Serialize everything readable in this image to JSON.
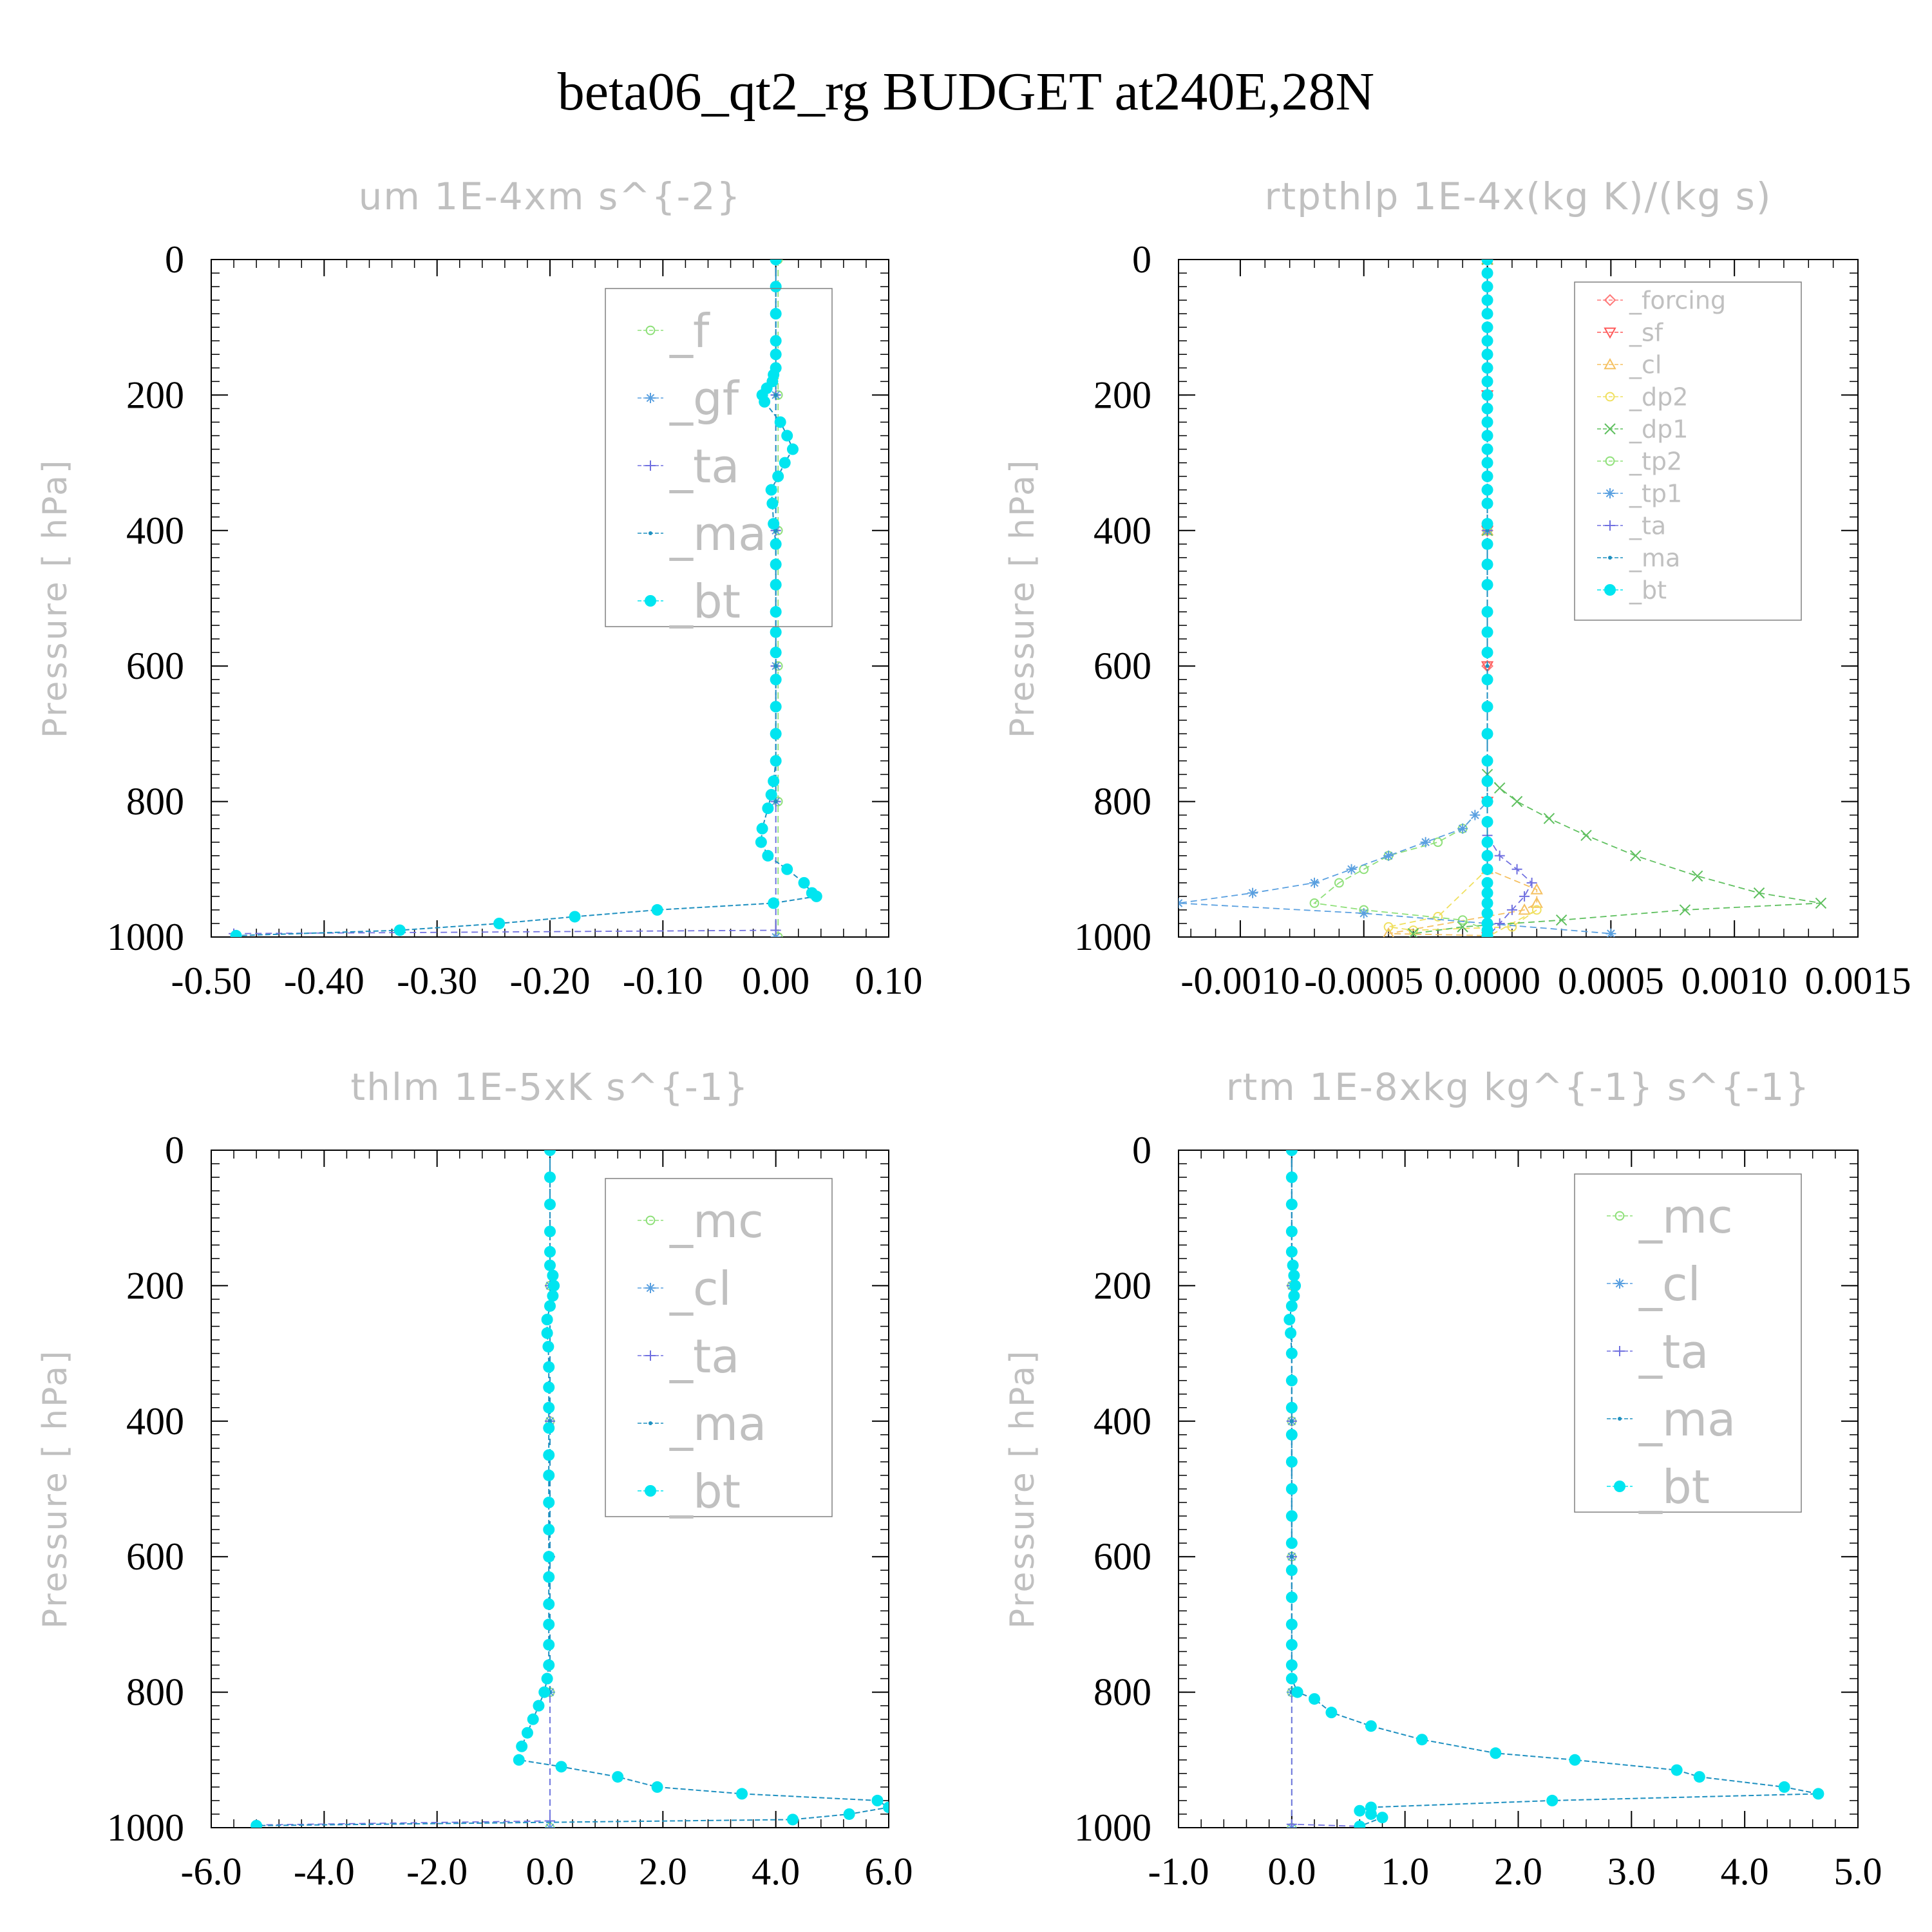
{
  "title": "beta06_qt2_rg  BUDGET at240E,28N",
  "colors": {
    "f": "#8fe07a",
    "gf": "#5aa0e0",
    "ta": "#7070e0",
    "ma": "#1e90c0",
    "bt": "#00e5f0",
    "forcing": "#ff7a7a",
    "sf": "#ff5a5a",
    "cl_warm": "#f5c060",
    "dp2": "#f0e060",
    "dp1": "#5fc05f",
    "tp2": "#8fe07a",
    "tp1": "#5aa0e0",
    "mc": "#8fe07a",
    "cl": "#5aa0e0",
    "axis": "#000000",
    "muted_text": "#c0c0c0"
  },
  "chart_data": [
    {
      "type": "line",
      "title": "um  1E-4xm s^{-2}",
      "ylabel": "Pressure [ hPa]",
      "xlim": [
        -0.5,
        0.1
      ],
      "ylim": [
        1000,
        0
      ],
      "xticks": [
        "-0.50",
        "-0.40",
        "-0.30",
        "-0.20",
        "-0.10",
        "0.00",
        "0.10"
      ],
      "yticks": [
        "0",
        "200",
        "400",
        "600",
        "800",
        "1000"
      ],
      "legend_placement": "top-right",
      "series": [
        {
          "name": "_f",
          "marker": "circle-open",
          "color_key": "f",
          "x": [
            0.002,
            0.002,
            0.002,
            0.002,
            0.002,
            0.002
          ],
          "y": [
            0,
            200,
            400,
            600,
            800,
            1000
          ]
        },
        {
          "name": "_gf",
          "marker": "asterisk",
          "color_key": "gf",
          "x": [
            0,
            0,
            0,
            0,
            0,
            0
          ],
          "y": [
            0,
            200,
            400,
            600,
            800,
            1000
          ]
        },
        {
          "name": "_ta",
          "marker": "plus",
          "color_key": "ta",
          "x": [
            0,
            0,
            0,
            0,
            0,
            0,
            -0.48
          ],
          "y": [
            0,
            200,
            400,
            600,
            800,
            990,
            995
          ]
        },
        {
          "name": "_ma",
          "marker": "dot",
          "color_key": "ma",
          "x": [
            0,
            0,
            0,
            0,
            0
          ],
          "y": [
            0,
            200,
            400,
            600,
            800
          ]
        },
        {
          "name": "_bt",
          "marker": "filled-circle",
          "color_key": "bt",
          "x": [
            0,
            0,
            0,
            0,
            0,
            0,
            -0.002,
            -0.003,
            -0.008,
            -0.012,
            -0.01,
            0.004,
            0.01,
            0.015,
            0.008,
            0.002,
            -0.004,
            -0.003,
            -0.002,
            0,
            0,
            0,
            0,
            0,
            0,
            0,
            0,
            0,
            0,
            -0.002,
            -0.004,
            -0.007,
            -0.012,
            -0.013,
            -0.007,
            0.01,
            0.025,
            0.032,
            0.036,
            -0.002,
            -0.105,
            -0.178,
            -0.245,
            -0.333,
            -0.478
          ],
          "y": [
            0,
            40,
            80,
            120,
            140,
            160,
            170,
            180,
            190,
            200,
            210,
            240,
            260,
            280,
            300,
            320,
            340,
            360,
            390,
            420,
            450,
            480,
            520,
            550,
            580,
            620,
            660,
            700,
            740,
            770,
            790,
            810,
            840,
            860,
            880,
            900,
            920,
            935,
            940,
            950,
            960,
            970,
            980,
            990,
            998
          ]
        }
      ]
    },
    {
      "type": "line",
      "title": "rtpthlp  1E-4x(kg K)/(kg s)",
      "ylabel": "Pressure [ hPa]",
      "xlim": [
        -0.00125,
        0.0015
      ],
      "ylim": [
        1000,
        0
      ],
      "xticks": [
        "-0.0010",
        "-0.0005",
        "0.0000",
        "0.0005",
        "0.0010",
        "0.0015"
      ],
      "yticks": [
        "0",
        "200",
        "400",
        "600",
        "800",
        "1000"
      ],
      "legend_placement": "top-right",
      "series": [
        {
          "name": "_forcing",
          "marker": "diamond",
          "color_key": "forcing",
          "x": [
            0,
            0,
            0,
            0,
            0,
            0
          ],
          "y": [
            0,
            200,
            400,
            600,
            800,
            1000
          ]
        },
        {
          "name": "_sf",
          "marker": "triangle-down",
          "color_key": "sf",
          "x": [
            0,
            0,
            0,
            0,
            0,
            0
          ],
          "y": [
            0,
            200,
            400,
            600,
            800,
            1000
          ]
        },
        {
          "name": "_cl",
          "marker": "triangle-up",
          "color_key": "cl_warm",
          "x": [
            0,
            0,
            0,
            0.0002,
            0.0002,
            0.00015,
            -0.0004,
            0
          ],
          "y": [
            0,
            400,
            900,
            930,
            950,
            960,
            995,
            998
          ]
        },
        {
          "name": "_dp2",
          "marker": "circle-open",
          "color_key": "dp2",
          "x": [
            0,
            0,
            0,
            -0.0002,
            -0.0004,
            -0.0003,
            0.0001,
            0.0002,
            0
          ],
          "y": [
            0,
            400,
            900,
            970,
            985,
            990,
            985,
            960,
            1000
          ]
        },
        {
          "name": "_dp1",
          "marker": "x",
          "color_key": "dp1",
          "x": [
            0,
            0,
            0,
            5e-05,
            0.00012,
            0.00025,
            0.0004,
            0.0006,
            0.00085,
            0.0011,
            0.00135,
            0.0008,
            0.0003,
            -0.0001,
            -0.0003
          ],
          "y": [
            0,
            400,
            760,
            780,
            800,
            825,
            850,
            880,
            910,
            935,
            950,
            960,
            975,
            985,
            995
          ]
        },
        {
          "name": "_tp2",
          "marker": "circle-open",
          "color_key": "tp2",
          "x": [
            0,
            0,
            0,
            -0.0001,
            -0.0002,
            -0.0004,
            -0.0005,
            -0.0006,
            -0.0007,
            -0.0005,
            -0.0001,
            0
          ],
          "y": [
            0,
            400,
            800,
            840,
            860,
            880,
            900,
            920,
            950,
            960,
            975,
            990
          ]
        },
        {
          "name": "_tp1",
          "marker": "asterisk",
          "color_key": "tp1",
          "x": [
            0,
            0,
            0,
            -5e-05,
            -0.0001,
            -0.00025,
            -0.0004,
            -0.00055,
            -0.0007,
            -0.00095,
            -0.00125,
            -0.0005,
            0,
            0.0005
          ],
          "y": [
            0,
            400,
            800,
            820,
            840,
            860,
            880,
            900,
            920,
            935,
            950,
            965,
            980,
            995
          ]
        },
        {
          "name": "_ta",
          "marker": "plus",
          "color_key": "ta",
          "x": [
            0,
            0,
            0,
            5e-05,
            0.00012,
            0.00018,
            0.00015,
            0.0001,
            5e-05,
            0
          ],
          "y": [
            0,
            400,
            850,
            880,
            900,
            920,
            940,
            960,
            980,
            1000
          ]
        },
        {
          "name": "_ma",
          "marker": "dot",
          "color_key": "ma",
          "x": [
            0,
            0,
            0,
            0,
            0,
            0
          ],
          "y": [
            0,
            200,
            400,
            600,
            800,
            1000
          ]
        },
        {
          "name": "_bt",
          "marker": "filled-circle",
          "color_key": "bt",
          "x": [
            0,
            0,
            0,
            0,
            0,
            0,
            0,
            0,
            0,
            0,
            0,
            0,
            0,
            0,
            0,
            0,
            0,
            0,
            0,
            0,
            0,
            0,
            0,
            0,
            0,
            0,
            0,
            0,
            0,
            0,
            0,
            0,
            0,
            0,
            0,
            0,
            0,
            0,
            0,
            0,
            0,
            0,
            0
          ],
          "y": [
            0,
            20,
            40,
            60,
            80,
            100,
            120,
            140,
            160,
            180,
            200,
            220,
            240,
            260,
            280,
            300,
            320,
            340,
            360,
            390,
            420,
            450,
            480,
            520,
            550,
            580,
            620,
            660,
            700,
            740,
            770,
            800,
            830,
            860,
            880,
            900,
            920,
            935,
            950,
            965,
            980,
            990,
            998
          ]
        }
      ]
    },
    {
      "type": "line",
      "title": "thlm  1E-5xK s^{-1}",
      "ylabel": "Pressure [ hPa]",
      "xlim": [
        -6.0,
        6.0
      ],
      "ylim": [
        1000,
        0
      ],
      "xticks": [
        "-6.0",
        "-4.0",
        "-2.0",
        "0.0",
        "2.0",
        "4.0",
        "6.0"
      ],
      "yticks": [
        "0",
        "200",
        "400",
        "600",
        "800",
        "1000"
      ],
      "legend_placement": "top-right",
      "series": [
        {
          "name": "_mc",
          "marker": "circle-open",
          "color_key": "mc",
          "x": [
            0,
            0,
            0,
            0,
            0,
            0
          ],
          "y": [
            0,
            200,
            400,
            600,
            800,
            1000
          ]
        },
        {
          "name": "_cl",
          "marker": "asterisk",
          "color_key": "cl",
          "x": [
            0,
            0,
            0,
            0,
            0,
            0
          ],
          "y": [
            0,
            200,
            400,
            600,
            800,
            1000
          ]
        },
        {
          "name": "_ta",
          "marker": "plus",
          "color_key": "ta",
          "x": [
            0,
            0,
            0,
            0,
            0,
            -5.2
          ],
          "y": [
            0,
            200,
            400,
            600,
            990,
            996
          ]
        },
        {
          "name": "_ma",
          "marker": "dot",
          "color_key": "ma",
          "x": [
            0,
            0,
            0,
            0,
            0
          ],
          "y": [
            0,
            200,
            400,
            600,
            800
          ]
        },
        {
          "name": "_bt",
          "marker": "filled-circle",
          "color_key": "bt",
          "x": [
            0,
            0,
            0,
            0,
            0,
            0,
            0.05,
            0.07,
            0.05,
            0,
            -0.05,
            -0.05,
            -0.03,
            -0.02,
            -0.02,
            -0.02,
            -0.02,
            -0.02,
            -0.02,
            -0.02,
            -0.02,
            -0.02,
            -0.02,
            -0.02,
            -0.02,
            -0.02,
            -0.02,
            -0.05,
            -0.1,
            -0.2,
            -0.3,
            -0.4,
            -0.5,
            -0.55,
            0.2,
            1.2,
            1.9,
            3.4,
            5.8,
            6.0,
            5.3,
            4.3,
            -5.2
          ],
          "y": [
            0,
            40,
            80,
            120,
            150,
            170,
            185,
            200,
            215,
            230,
            250,
            270,
            290,
            320,
            350,
            380,
            410,
            450,
            480,
            520,
            560,
            600,
            630,
            670,
            700,
            730,
            760,
            780,
            800,
            820,
            840,
            860,
            880,
            900,
            910,
            925,
            940,
            950,
            960,
            970,
            980,
            988,
            997
          ]
        }
      ]
    },
    {
      "type": "line",
      "title": "rtm  1E-8xkg kg^{-1} s^{-1}",
      "ylabel": "Pressure [ hPa]",
      "xlim": [
        -1.0,
        5.0
      ],
      "ylim": [
        1000,
        0
      ],
      "xticks": [
        "-1.0",
        "0.0",
        "1.0",
        "2.0",
        "3.0",
        "4.0",
        "5.0"
      ],
      "yticks": [
        "0",
        "200",
        "400",
        "600",
        "800",
        "1000"
      ],
      "legend_placement": "top-right",
      "series": [
        {
          "name": "_mc",
          "marker": "circle-open",
          "color_key": "mc",
          "x": [
            0,
            0,
            0,
            0,
            0,
            0
          ],
          "y": [
            0,
            200,
            400,
            600,
            800,
            1000
          ]
        },
        {
          "name": "_cl",
          "marker": "asterisk",
          "color_key": "cl",
          "x": [
            0,
            0,
            0,
            0,
            0,
            0
          ],
          "y": [
            0,
            200,
            400,
            600,
            800,
            1000
          ]
        },
        {
          "name": "_ta",
          "marker": "plus",
          "color_key": "ta",
          "x": [
            0,
            0,
            0,
            0,
            0,
            0.6
          ],
          "y": [
            0,
            200,
            400,
            600,
            995,
            998
          ]
        },
        {
          "name": "_ma",
          "marker": "dot",
          "color_key": "ma",
          "x": [
            0,
            0,
            0,
            0,
            0
          ],
          "y": [
            0,
            200,
            400,
            600,
            800
          ]
        },
        {
          "name": "_bt",
          "marker": "filled-circle",
          "color_key": "bt",
          "x": [
            0,
            0,
            0,
            0,
            0,
            0.01,
            0.02,
            0.03,
            0.02,
            0,
            -0.02,
            -0.01,
            0,
            0,
            0,
            0,
            0,
            0,
            0,
            0,
            0,
            0,
            0,
            0,
            0,
            0,
            0.05,
            0.2,
            0.35,
            0.7,
            1.15,
            1.8,
            2.5,
            3.4,
            3.6,
            4.35,
            4.65,
            2.3,
            0.7,
            0.6,
            0.7,
            0.8,
            0.6
          ],
          "y": [
            0,
            40,
            80,
            120,
            150,
            170,
            185,
            200,
            215,
            230,
            250,
            270,
            300,
            340,
            380,
            420,
            460,
            500,
            540,
            580,
            620,
            660,
            700,
            730,
            760,
            780,
            800,
            810,
            830,
            850,
            870,
            890,
            900,
            915,
            925,
            940,
            950,
            960,
            970,
            975,
            980,
            985,
            998
          ]
        }
      ]
    }
  ]
}
